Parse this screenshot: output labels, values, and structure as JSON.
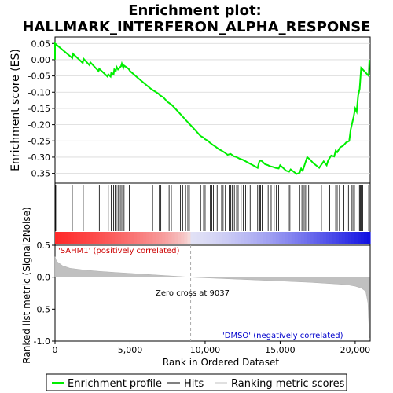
{
  "chart_data": {
    "type": "line",
    "title_line1": "Enrichment plot:",
    "title_line2": "HALLMARK_INTERFERON_ALPHA_RESPONSE",
    "es_panel": {
      "ylabel": "Enrichment score (ES)",
      "ylim": [
        -0.38,
        0.07
      ],
      "yticks": [
        0.05,
        0.0,
        -0.05,
        -0.1,
        -0.15,
        -0.2,
        -0.25,
        -0.3,
        -0.35
      ],
      "ytick_labels": [
        "0.05",
        "0.00",
        "-0.05",
        "-0.10",
        "-0.15",
        "-0.20",
        "-0.25",
        "-0.30",
        "-0.35"
      ],
      "color": "#00ee00",
      "series": {
        "name": "Enrichment profile",
        "x": [
          0,
          0,
          1150,
          1200,
          1850,
          1900,
          2300,
          2350,
          2900,
          2950,
          3500,
          3550,
          3700,
          3750,
          3900,
          3950,
          4050,
          4100,
          4200,
          4300,
          4400,
          4450,
          4550,
          4600,
          4900,
          5000,
          5500,
          6000,
          6400,
          6500,
          6900,
          7000,
          7200,
          7500,
          7600,
          7800,
          8300,
          8400,
          8600,
          8800,
          8900,
          9200,
          9700,
          9900,
          10000,
          10200,
          10300,
          10500,
          10700,
          10900,
          11100,
          11300,
          11500,
          11700,
          11900,
          12100,
          12300,
          12500,
          12700,
          12900,
          13100,
          13300,
          13500,
          13600,
          13700,
          13800,
          14000,
          14200,
          14300,
          14500,
          14700,
          14900,
          15000,
          15200,
          15400,
          15600,
          15700,
          15900,
          16100,
          16300,
          16400,
          16500,
          16600,
          16800,
          17000,
          17200,
          17600,
          17900,
          18100,
          18200,
          18400,
          18600,
          18700,
          18800,
          19000,
          19200,
          19400,
          19600,
          19700,
          19800,
          19900,
          20000,
          20100,
          20200,
          20300,
          20400,
          20500,
          20900,
          20950
        ],
        "y": [
          0.0,
          0.05,
          0.005,
          0.018,
          -0.01,
          0.003,
          -0.017,
          -0.008,
          -0.035,
          -0.028,
          -0.052,
          -0.045,
          -0.052,
          -0.04,
          -0.045,
          -0.03,
          -0.035,
          -0.022,
          -0.03,
          -0.025,
          -0.02,
          -0.012,
          -0.025,
          -0.018,
          -0.028,
          -0.035,
          -0.055,
          -0.075,
          -0.09,
          -0.093,
          -0.105,
          -0.11,
          -0.115,
          -0.13,
          -0.133,
          -0.14,
          -0.165,
          -0.17,
          -0.18,
          -0.19,
          -0.195,
          -0.21,
          -0.235,
          -0.24,
          -0.245,
          -0.25,
          -0.255,
          -0.262,
          -0.268,
          -0.275,
          -0.28,
          -0.286,
          -0.293,
          -0.29,
          -0.297,
          -0.3,
          -0.305,
          -0.308,
          -0.313,
          -0.318,
          -0.323,
          -0.328,
          -0.333,
          -0.315,
          -0.31,
          -0.313,
          -0.322,
          -0.325,
          -0.328,
          -0.33,
          -0.333,
          -0.335,
          -0.325,
          -0.333,
          -0.342,
          -0.345,
          -0.338,
          -0.345,
          -0.352,
          -0.348,
          -0.335,
          -0.342,
          -0.328,
          -0.3,
          -0.308,
          -0.318,
          -0.333,
          -0.313,
          -0.325,
          -0.31,
          -0.295,
          -0.298,
          -0.28,
          -0.285,
          -0.27,
          -0.265,
          -0.255,
          -0.25,
          -0.215,
          -0.195,
          -0.175,
          -0.15,
          -0.16,
          -0.11,
          -0.09,
          -0.025,
          -0.03,
          -0.05,
          0.0
        ]
      }
    },
    "hits_panel": {
      "label": "Hits",
      "positions": [
        50,
        1150,
        1880,
        2330,
        2950,
        3550,
        3750,
        3900,
        4000,
        4080,
        4200,
        4350,
        4450,
        4600,
        4950,
        6000,
        6500,
        6950,
        7050,
        7600,
        7750,
        8350,
        8500,
        8700,
        8850,
        8950,
        9700,
        9900,
        10000,
        10350,
        10450,
        10550,
        10800,
        11100,
        11200,
        11350,
        11600,
        11700,
        11800,
        11950,
        12100,
        12200,
        12400,
        12550,
        12700,
        12850,
        13000,
        13500,
        13650,
        13700,
        13800,
        14200,
        14400,
        14600,
        14750,
        14900,
        15550,
        15650,
        16300,
        16450,
        16600,
        16700,
        16900,
        17750,
        18300,
        18700,
        18800,
        18950,
        19250,
        19550,
        19750,
        19850,
        19950,
        20200,
        20300,
        20350,
        20400,
        20450,
        20500,
        20900
      ]
    },
    "rank_panel": {
      "ylabel": "Ranked list metric (Signal2Noise)",
      "xlabel": "Rank in Ordered Dataset",
      "ylim": [
        -1.0,
        0.5
      ],
      "yticks": [
        0.5,
        0.0,
        -0.5,
        -1.0
      ],
      "ytick_labels": [
        "0.5",
        "0.0",
        "-0.5",
        "-1.0"
      ],
      "xlim": [
        0,
        21000
      ],
      "xticks": [
        0,
        5000,
        10000,
        15000,
        20000
      ],
      "xtick_labels": [
        "0",
        "5,000",
        "10,000",
        "15,000",
        "20,000"
      ],
      "profile": {
        "x": [
          0,
          100,
          500,
          1000,
          2000,
          3000,
          4000,
          5000,
          6000,
          7000,
          8000,
          9037,
          10000,
          11000,
          12000,
          13000,
          14000,
          15000,
          16000,
          17000,
          18000,
          19000,
          19500,
          20000,
          20400,
          20700,
          20850,
          20950
        ],
        "y": [
          0.32,
          0.25,
          0.18,
          0.14,
          0.11,
          0.09,
          0.075,
          0.06,
          0.045,
          0.03,
          0.015,
          0.0,
          -0.01,
          -0.02,
          -0.03,
          -0.04,
          -0.05,
          -0.06,
          -0.07,
          -0.08,
          -0.095,
          -0.11,
          -0.12,
          -0.14,
          -0.17,
          -0.22,
          -0.4,
          -0.95
        ]
      },
      "zero_cross_label": "Zero cross at 9037",
      "zero_cross": 9037,
      "positive_label": "'SAHM1' (positively correlated)",
      "negative_label": "'DMSO' (negatively correlated)"
    },
    "legend": [
      {
        "label": "Enrichment profile",
        "color": "#00ee00"
      },
      {
        "label": "Hits",
        "color": "#000000"
      },
      {
        "label": "Ranking metric scores",
        "color": "#c0c0c0"
      }
    ]
  }
}
